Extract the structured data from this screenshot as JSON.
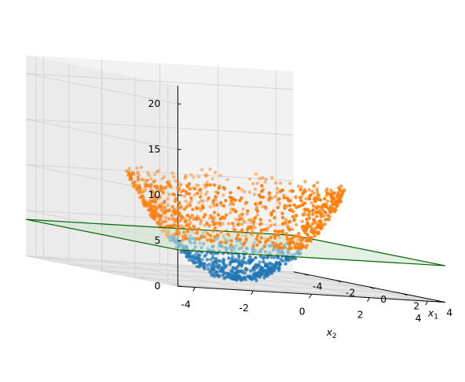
{
  "chart_data": {
    "type": "scatter",
    "projection": "3d",
    "surface": "paraboloid z = x1^2 + x2^2",
    "view": "low elevation, x1 axis on the right, x2 axis at the front",
    "grid": true,
    "axes": {
      "x1": {
        "label": "x",
        "label_subscript": "1",
        "range": [
          -4.6,
          4.6
        ],
        "ticks": [
          "-4",
          "-2",
          "0",
          "2",
          "4"
        ]
      },
      "x2": {
        "label": "x",
        "label_subscript": "2",
        "range": [
          -4.6,
          4.6
        ],
        "ticks": [
          "-4",
          "-2",
          "0",
          "2",
          "4"
        ]
      },
      "z": {
        "range": [
          0,
          22
        ],
        "ticks": [
          "0",
          "5",
          "10",
          "15",
          "20"
        ]
      }
    },
    "plane": {
      "z": 4,
      "x1_range": [
        -4.6,
        4.6
      ],
      "x2_range": [
        -4.6,
        4.6
      ],
      "fill": "#cfe3d0",
      "edge": "#006400"
    },
    "series": [
      {
        "rule": "z below plane",
        "color": "#1f77b4",
        "points": 1500
      },
      {
        "rule": "z above plane",
        "color": "#ff7f0e"
      }
    ],
    "colors": {
      "pane": "#f2f2f2",
      "grid": "#d0d0d0",
      "axis": "#000000"
    }
  }
}
